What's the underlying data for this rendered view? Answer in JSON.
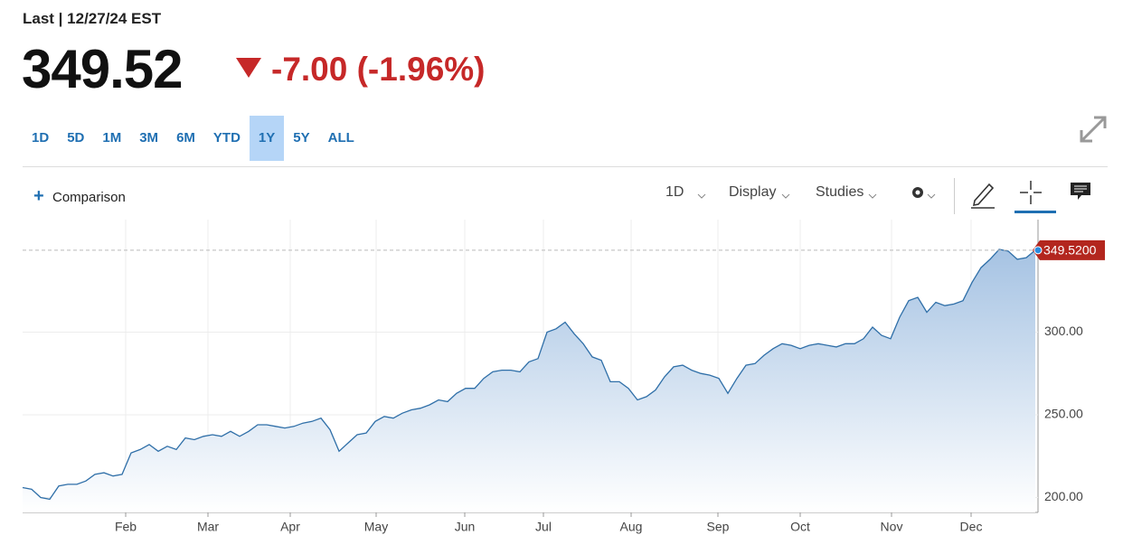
{
  "header": {
    "label": "Last | 12/27/24 EST",
    "price": "349.52",
    "change": "-7.00 (-1.96%)"
  },
  "ranges": [
    "1D",
    "5D",
    "1M",
    "3M",
    "6M",
    "YTD",
    "1Y",
    "5Y",
    "ALL"
  ],
  "active_range": "1Y",
  "toolbar": {
    "comparison": "Comparison",
    "interval": "1D",
    "display": "Display",
    "studies": "Studies"
  },
  "chart_data": {
    "type": "area",
    "values": [
      206,
      205,
      200,
      199,
      207,
      208,
      208,
      210,
      214,
      215,
      213,
      214,
      227,
      229,
      232,
      228,
      231,
      229,
      236,
      235,
      237,
      238,
      237,
      240,
      237,
      240,
      244,
      244,
      243,
      242,
      243,
      245,
      246,
      248,
      241,
      228,
      233,
      238,
      239,
      246,
      249,
      248,
      251,
      253,
      254,
      256,
      259,
      258,
      263,
      266,
      266,
      272,
      276,
      277,
      277,
      276,
      282,
      284,
      300,
      302,
      306,
      299,
      293,
      285,
      283,
      270,
      270,
      266,
      259,
      261,
      265,
      273,
      279,
      280,
      277,
      275,
      274,
      272,
      263,
      272,
      280,
      281,
      286,
      290,
      293,
      292,
      290,
      292,
      293,
      292,
      291,
      293,
      293,
      296,
      303,
      298,
      296,
      309,
      319,
      321,
      312,
      318,
      316,
      317,
      319,
      330,
      339,
      344,
      350,
      349,
      344,
      345,
      349.52
    ],
    "color": "#2f6fa8",
    "xlim": [
      0,
      112.3
    ],
    "xticks": [
      {
        "value": 11.4,
        "label": "Feb"
      },
      {
        "value": 20.5,
        "label": "Mar"
      },
      {
        "value": 29.6,
        "label": "Apr"
      },
      {
        "value": 39.1,
        "label": "May"
      },
      {
        "value": 48.9,
        "label": "Jun"
      },
      {
        "value": 57.6,
        "label": "Jul"
      },
      {
        "value": 67.3,
        "label": "Aug"
      },
      {
        "value": 76.9,
        "label": "Sep"
      },
      {
        "value": 86,
        "label": "Oct"
      },
      {
        "value": 96.1,
        "label": "Nov"
      },
      {
        "value": 104.9,
        "label": "Dec"
      }
    ],
    "ylim": [
      191,
      368
    ],
    "yticks": [
      {
        "value": 200,
        "label": "200.00"
      },
      {
        "value": 250,
        "label": "250.00"
      },
      {
        "value": 300,
        "label": "300.00"
      }
    ],
    "last_price": {
      "value": 349.52,
      "label": "349.5200"
    },
    "grid": true
  }
}
